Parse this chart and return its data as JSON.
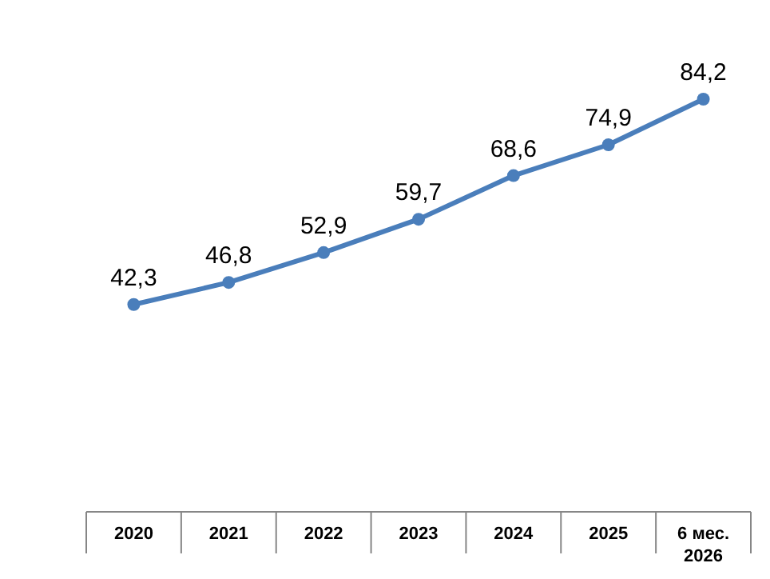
{
  "chart_data": {
    "type": "line",
    "categories": [
      "2020",
      "2021",
      "2022",
      "2023",
      "2024",
      "2025",
      "6 мес. 2026"
    ],
    "values": [
      42.3,
      46.8,
      52.9,
      59.7,
      68.6,
      74.9,
      84.2
    ],
    "value_labels": [
      "42,3",
      "46,8",
      "52,9",
      "59,7",
      "68,6",
      "74,9",
      "84,2"
    ],
    "color": "#4a7ebb",
    "marker": "circle",
    "line_style": "solid"
  }
}
